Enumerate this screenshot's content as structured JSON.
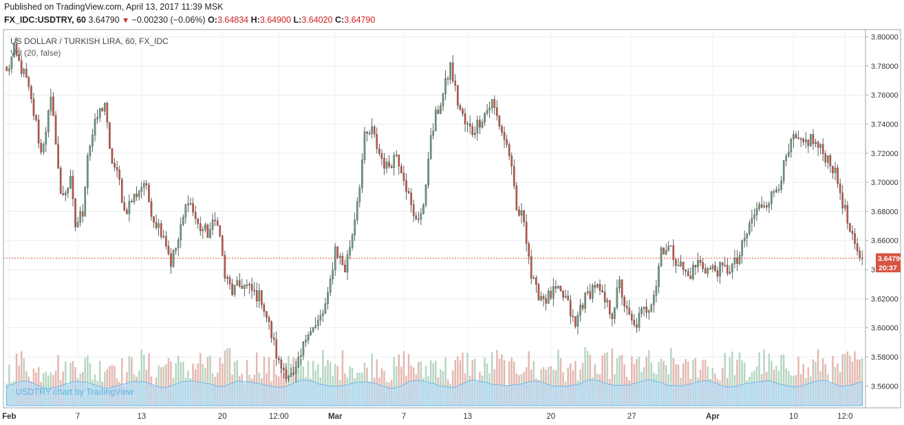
{
  "header": {
    "published": "Published on TradingView.com, April 13, 2017 11:39 MSK",
    "symbol": "FX_IDC:USDTRY, 60",
    "last": "3.64790",
    "change": "−0.00230 (−0.06%)",
    "o_label": "O:",
    "o_value": "3.64834",
    "h_label": "H:",
    "h_value": "3.64900",
    "l_label": "L:",
    "l_value": "3.64020",
    "c_label": "C:",
    "c_value": "3.64790"
  },
  "legend": {
    "series_title": "US DOLLAR / TURKISH LIRA, 60, FX_IDC",
    "volume_title": "Vol (20, false)"
  },
  "watermark": "USDTRY chart by TradingView",
  "price_label": "3.64790",
  "countdown_label": "20:37",
  "colors": {
    "up": "#6ba583",
    "down": "#d75442",
    "wick": "#333333",
    "last_line": "#d75442",
    "vol_up": "#a9cfb7",
    "vol_down": "#e0aaa2",
    "vol_ma": "#8ec9f0"
  },
  "chart_data": {
    "type": "candlestick",
    "title": "US DOLLAR / TURKISH LIRA, 60, FX_IDC",
    "y_ticks": [
      "3.80000",
      "3.78000",
      "3.76000",
      "3.74000",
      "3.72000",
      "3.70000",
      "3.68000",
      "3.66000",
      "3.64000",
      "3.62000",
      "3.60000",
      "3.58000",
      "3.56000"
    ],
    "ylim": [
      3.545,
      3.805
    ],
    "x_ticks": [
      {
        "label": "Feb",
        "bold": true,
        "i": 1
      },
      {
        "label": "7",
        "bold": false,
        "i": 29
      },
      {
        "label": "13",
        "bold": false,
        "i": 55
      },
      {
        "label": "20",
        "bold": false,
        "i": 88
      },
      {
        "label": "12:00",
        "bold": false,
        "i": 111
      },
      {
        "label": "Mar",
        "bold": true,
        "i": 134
      },
      {
        "label": "7",
        "bold": false,
        "i": 162
      },
      {
        "label": "13",
        "bold": false,
        "i": 188
      },
      {
        "label": "20",
        "bold": false,
        "i": 222
      },
      {
        "label": "27",
        "bold": false,
        "i": 255
      },
      {
        "label": "Apr",
        "bold": true,
        "i": 288
      },
      {
        "label": "10",
        "bold": false,
        "i": 321
      },
      {
        "label": "12:0",
        "bold": false,
        "i": 342
      }
    ],
    "last_price": 3.6479,
    "price_anchors": [
      [
        0,
        3.775
      ],
      [
        3,
        3.79
      ],
      [
        8,
        3.77
      ],
      [
        12,
        3.74
      ],
      [
        14,
        3.72
      ],
      [
        18,
        3.755
      ],
      [
        20,
        3.73
      ],
      [
        22,
        3.69
      ],
      [
        26,
        3.7
      ],
      [
        28,
        3.67
      ],
      [
        31,
        3.68
      ],
      [
        33,
        3.72
      ],
      [
        37,
        3.745
      ],
      [
        40,
        3.755
      ],
      [
        42,
        3.72
      ],
      [
        46,
        3.7
      ],
      [
        48,
        3.68
      ],
      [
        52,
        3.69
      ],
      [
        56,
        3.7
      ],
      [
        60,
        3.675
      ],
      [
        64,
        3.665
      ],
      [
        67,
        3.645
      ],
      [
        70,
        3.66
      ],
      [
        74,
        3.69
      ],
      [
        78,
        3.67
      ],
      [
        82,
        3.665
      ],
      [
        86,
        3.675
      ],
      [
        89,
        3.635
      ],
      [
        92,
        3.625
      ],
      [
        96,
        3.63
      ],
      [
        100,
        3.625
      ],
      [
        104,
        3.62
      ],
      [
        108,
        3.595
      ],
      [
        111,
        3.575
      ],
      [
        114,
        3.57
      ],
      [
        117,
        3.565
      ],
      [
        120,
        3.58
      ],
      [
        123,
        3.6
      ],
      [
        126,
        3.6
      ],
      [
        129,
        3.61
      ],
      [
        131,
        3.62
      ],
      [
        134,
        3.655
      ],
      [
        138,
        3.64
      ],
      [
        141,
        3.665
      ],
      [
        144,
        3.7
      ],
      [
        146,
        3.73
      ],
      [
        149,
        3.735
      ],
      [
        152,
        3.72
      ],
      [
        155,
        3.71
      ],
      [
        159,
        3.72
      ],
      [
        162,
        3.705
      ],
      [
        164,
        3.69
      ],
      [
        166,
        3.675
      ],
      [
        170,
        3.68
      ],
      [
        172,
        3.72
      ],
      [
        175,
        3.745
      ],
      [
        178,
        3.76
      ],
      [
        181,
        3.78
      ],
      [
        184,
        3.755
      ],
      [
        187,
        3.74
      ],
      [
        190,
        3.735
      ],
      [
        194,
        3.745
      ],
      [
        198,
        3.755
      ],
      [
        202,
        3.735
      ],
      [
        205,
        3.72
      ],
      [
        208,
        3.68
      ],
      [
        211,
        3.675
      ],
      [
        213,
        3.65
      ],
      [
        214,
        3.635
      ],
      [
        216,
        3.625
      ],
      [
        220,
        3.62
      ],
      [
        224,
        3.625
      ],
      [
        228,
        3.62
      ],
      [
        232,
        3.6
      ],
      [
        234,
        3.615
      ],
      [
        238,
        3.625
      ],
      [
        240,
        3.63
      ],
      [
        243,
        3.62
      ],
      [
        247,
        3.61
      ],
      [
        250,
        3.63
      ],
      [
        253,
        3.61
      ],
      [
        256,
        3.6
      ],
      [
        259,
        3.61
      ],
      [
        262,
        3.615
      ],
      [
        265,
        3.63
      ],
      [
        267,
        3.655
      ],
      [
        270,
        3.655
      ],
      [
        274,
        3.645
      ],
      [
        278,
        3.635
      ],
      [
        282,
        3.645
      ],
      [
        286,
        3.64
      ],
      [
        290,
        3.64
      ],
      [
        294,
        3.64
      ],
      [
        298,
        3.645
      ],
      [
        301,
        3.66
      ],
      [
        304,
        3.675
      ],
      [
        308,
        3.685
      ],
      [
        312,
        3.69
      ],
      [
        315,
        3.7
      ],
      [
        318,
        3.715
      ],
      [
        321,
        3.73
      ],
      [
        324,
        3.725
      ],
      [
        328,
        3.73
      ],
      [
        333,
        3.72
      ],
      [
        336,
        3.715
      ],
      [
        339,
        3.7
      ],
      [
        342,
        3.68
      ],
      [
        344,
        3.665
      ],
      [
        347,
        3.65
      ],
      [
        349,
        3.6479
      ]
    ]
  }
}
